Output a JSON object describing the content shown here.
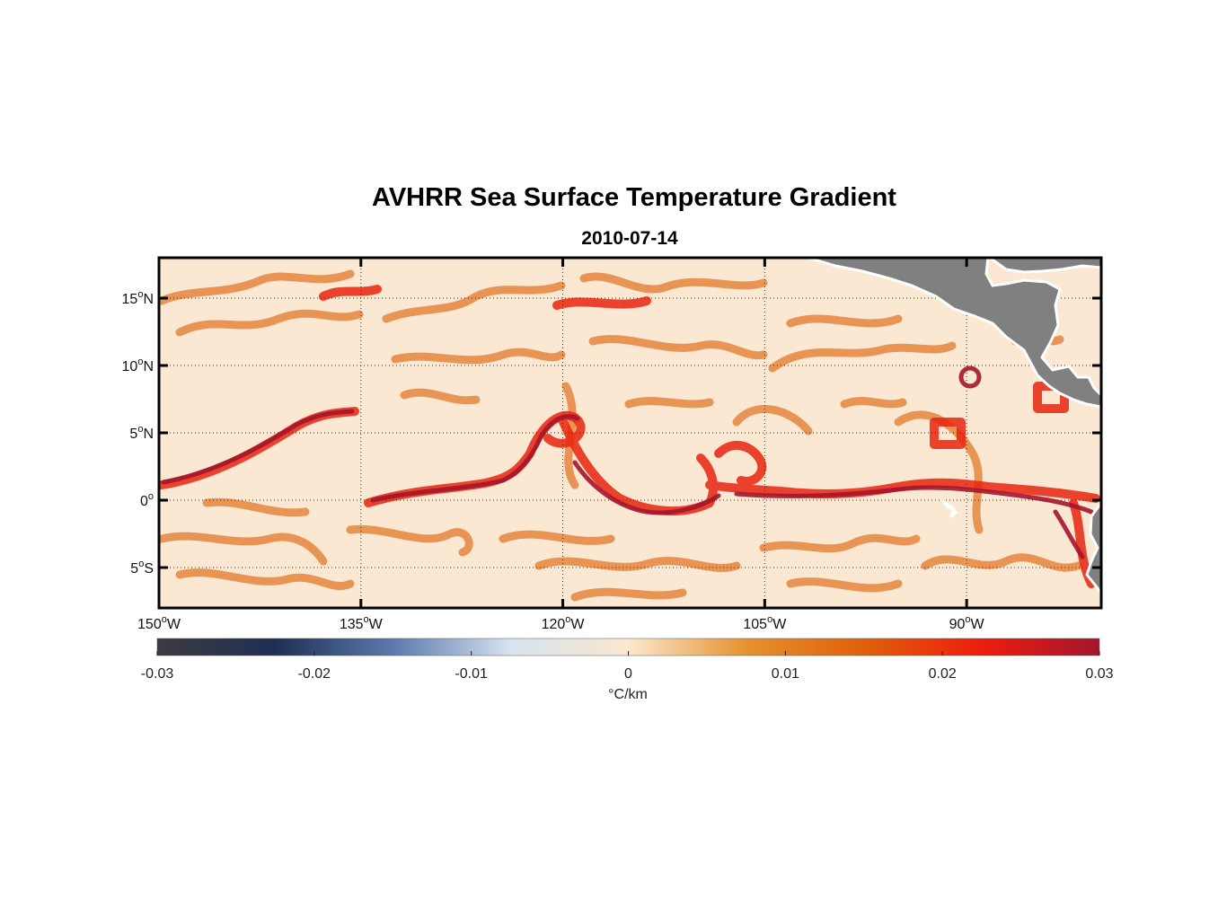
{
  "title": "AVHRR Sea Surface Temperature Gradient",
  "subtitle": "2010-07-14",
  "map": {
    "lon_range": [
      -150,
      -80
    ],
    "lat_range": [
      -8,
      18
    ],
    "gridlines": "dotted",
    "lon_ticks": [
      {
        "value": -150,
        "deg": "150",
        "hemi": "W"
      },
      {
        "value": -135,
        "deg": "135",
        "hemi": "W"
      },
      {
        "value": -120,
        "deg": "120",
        "hemi": "W"
      },
      {
        "value": -105,
        "deg": "105",
        "hemi": "W"
      },
      {
        "value": -90,
        "deg": "90",
        "hemi": "W"
      }
    ],
    "lat_ticks": [
      {
        "value": 15,
        "deg": "15",
        "hemi": "N"
      },
      {
        "value": 10,
        "deg": "10",
        "hemi": "N"
      },
      {
        "value": 5,
        "deg": "5",
        "hemi": "N"
      },
      {
        "value": 0,
        "deg": "0",
        "hemi": ""
      },
      {
        "value": -5,
        "deg": "5",
        "hemi": "S"
      }
    ],
    "colors": {
      "ocean_background": "#fbe8d3",
      "land": "#808080",
      "coast_outline": "#ffffff",
      "front_light": "#e1782a",
      "front_medium": "#e7240f",
      "front_strong": "#a3162e"
    }
  },
  "colorbar": {
    "range": [
      -0.03,
      0.03
    ],
    "ticks": [
      "-0.03",
      "-0.02",
      "-0.01",
      "0",
      "0.01",
      "0.02",
      "0.03"
    ],
    "unit_label": "°C/km",
    "colors": [
      "#3b3b3f",
      "#1f2f55",
      "#5b79ad",
      "#d6e3ef",
      "#fbe8cf",
      "#e5922e",
      "#e0600a",
      "#ee1d0e",
      "#a3162e"
    ]
  }
}
